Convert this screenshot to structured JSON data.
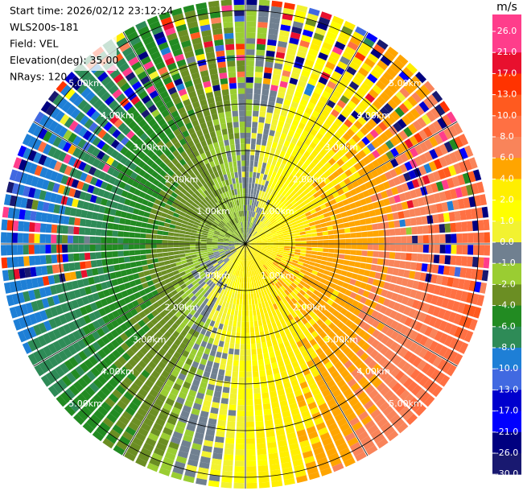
{
  "chart_data": {
    "type": "ppi",
    "header": [
      "Start time: 2026/02/12 23:12:24",
      "WLS200s-181",
      "Field: VEL",
      "Elevation(deg): 35.00",
      "NRays: 120"
    ],
    "range_rings": [
      {
        "value": 1,
        "label": "1.00km"
      },
      {
        "value": 2,
        "label": "2.00km"
      },
      {
        "value": 3,
        "label": "3.00km"
      },
      {
        "value": 4,
        "label": "4.00km"
      },
      {
        "value": 5,
        "label": "5.00km"
      }
    ],
    "colorbar": {
      "unit": "m/s",
      "ticks": [
        {
          "value": 26,
          "label": "26.0"
        },
        {
          "value": 21,
          "label": "21.0"
        },
        {
          "value": 17,
          "label": "17.0"
        },
        {
          "value": 13,
          "label": "13.0"
        },
        {
          "value": 10,
          "label": "10.0"
        },
        {
          "value": 8,
          "label": "8.0"
        },
        {
          "value": 6,
          "label": "6.0"
        },
        {
          "value": 4,
          "label": "4.0"
        },
        {
          "value": 2,
          "label": "2.0"
        },
        {
          "value": 1,
          "label": "1.0"
        },
        {
          "value": 0,
          "label": "0.0"
        },
        {
          "value": -1,
          "label": "-1.0"
        },
        {
          "value": -2,
          "label": "-2.0"
        },
        {
          "value": -4,
          "label": "-4.0"
        },
        {
          "value": -6,
          "label": "-6.0"
        },
        {
          "value": -8,
          "label": "-8.0"
        },
        {
          "value": -10,
          "label": "-10.0"
        },
        {
          "value": -13,
          "label": "-13.0"
        },
        {
          "value": -17,
          "label": "-17.0"
        },
        {
          "value": -21,
          "label": "-21.0"
        },
        {
          "value": -26,
          "label": "-26.0"
        },
        {
          "value": -30,
          "label": "-30.0"
        }
      ],
      "colors": [
        "#ff3d8b",
        "#e8102e",
        "#ff3300",
        "#ff5a1f",
        "#ff7043",
        "#f9845a",
        "#ffa500",
        "#ffee00",
        "#ffff00",
        "#f2f230",
        "#708090",
        "#9acd32",
        "#6b8e23",
        "#228b22",
        "#2e8b57",
        "#1e7fd6",
        "#4169e1",
        "#0000cd",
        "#0000ff",
        "#000080",
        "#191970"
      ]
    }
  }
}
